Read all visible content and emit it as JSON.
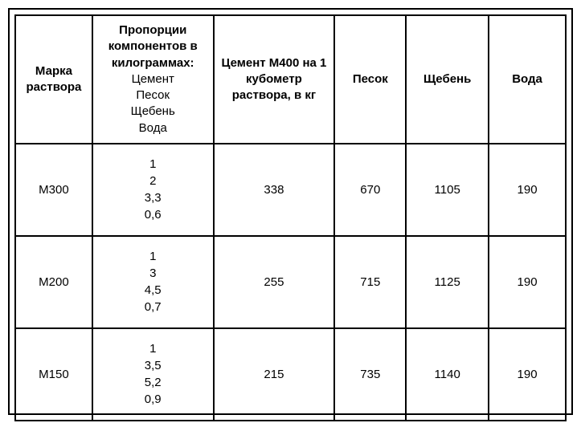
{
  "table": {
    "border_color": "#000000",
    "background_color": "#ffffff",
    "text_color": "#000000",
    "font_size": 15,
    "columns": [
      {
        "header_bold": "Марка раствора",
        "header_normal": "",
        "width_pct": 14
      },
      {
        "header_bold": "Пропорции компонентов в килограммах:",
        "header_normal": "Цемент\nПесок\nЩебень\nВода",
        "width_pct": 22
      },
      {
        "header_bold": "Цемент М400 на 1 кубометр раствора, в кг",
        "header_normal": "",
        "width_pct": 22
      },
      {
        "header_bold": "Песок",
        "header_normal": "",
        "width_pct": 13
      },
      {
        "header_bold": "Щебень",
        "header_normal": "",
        "width_pct": 15
      },
      {
        "header_bold": "Вода",
        "header_normal": "",
        "width_pct": 14
      }
    ],
    "rows": [
      {
        "grade": "М300",
        "ratios": [
          "1",
          "2",
          "3,3",
          "0,6"
        ],
        "cement": "338",
        "sand": "670",
        "gravel": "1105",
        "water": "190"
      },
      {
        "grade": "М200",
        "ratios": [
          "1",
          "3",
          "4,5",
          "0,7"
        ],
        "cement": "255",
        "sand": "715",
        "gravel": "1125",
        "water": "190"
      },
      {
        "grade": "М150",
        "ratios": [
          "1",
          "3,5",
          "5,2",
          "0,9"
        ],
        "cement": "215",
        "sand": "735",
        "gravel": "1140",
        "water": "190"
      }
    ]
  }
}
